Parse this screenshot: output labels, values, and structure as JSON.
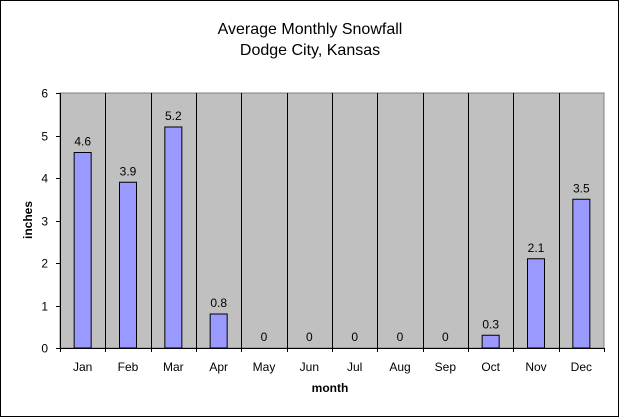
{
  "chart_data": {
    "type": "bar",
    "title": "Average Monthly Snowfall",
    "subtitle": "Dodge City, Kansas",
    "xlabel": "month",
    "ylabel": "inches",
    "categories": [
      "Jan",
      "Feb",
      "Mar",
      "Apr",
      "May",
      "Jun",
      "Jul",
      "Aug",
      "Sep",
      "Oct",
      "Nov",
      "Dec"
    ],
    "values": [
      4.6,
      3.9,
      5.2,
      0.8,
      0,
      0,
      0,
      0,
      0,
      0.3,
      2.1,
      3.5
    ],
    "value_labels": [
      "4.6",
      "3.9",
      "5.2",
      "0.8",
      "0",
      "0",
      "0",
      "0",
      "0",
      "0.3",
      "2.1",
      "3.5"
    ],
    "ylim": [
      0,
      6
    ],
    "yticks": [
      0,
      1,
      2,
      3,
      4,
      5,
      6
    ],
    "grid": "vertical category separators",
    "legend": "none",
    "colors": {
      "bar_fill": "#9999ff",
      "bar_stroke": "#000000",
      "plot_background": "#c0c0c0",
      "chart_background": "#ffffff"
    }
  }
}
